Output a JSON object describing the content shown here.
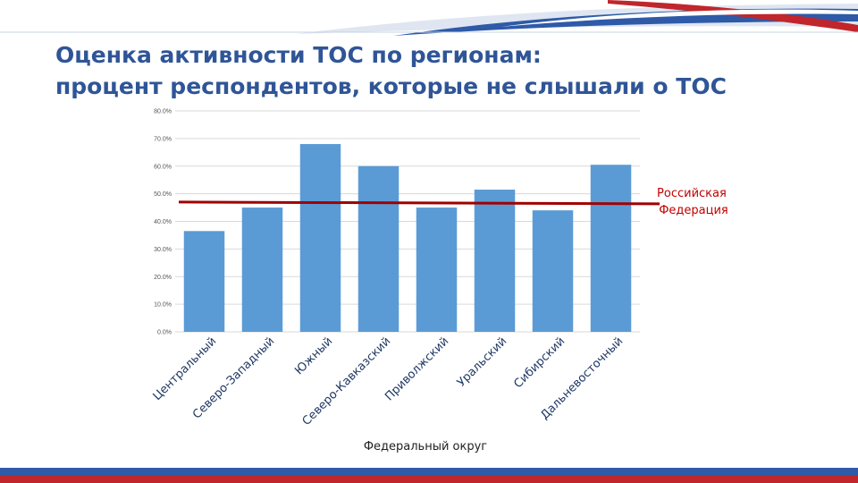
{
  "slide": {
    "title_line1": "Оценка активности ТОС по регионам:",
    "title_line2": "процент респондентов, которые не слышали о ТОС"
  },
  "colors": {
    "title": "#2f5597",
    "bar": "#5b9bd5",
    "reference_line": "#a00000",
    "stripe_blue": "#2e5aa8",
    "stripe_red": "#c0262c"
  },
  "chart_data": {
    "type": "bar",
    "title": "",
    "xlabel": "Федеральный округ",
    "ylabel": "",
    "ylim": [
      0,
      80
    ],
    "yticks": [
      {
        "value": 0,
        "label": "0.0%"
      },
      {
        "value": 10,
        "label": "10.0%"
      },
      {
        "value": 20,
        "label": "20.0%"
      },
      {
        "value": 30,
        "label": "30.0%"
      },
      {
        "value": 40,
        "label": "40.0%"
      },
      {
        "value": 50,
        "label": "50.0%"
      },
      {
        "value": 60,
        "label": "60.0%"
      },
      {
        "value": 70,
        "label": "70.0%"
      },
      {
        "value": 80,
        "label": "80.0%"
      }
    ],
    "grid": true,
    "categories": [
      "Центральный",
      "Северо-Западный",
      "Южный",
      "Северо-Кавказский",
      "Приволжский",
      "Уральский",
      "Сибирский",
      "Дальневосточный"
    ],
    "values": [
      36.5,
      45,
      68,
      60,
      45,
      51.5,
      44,
      60.5
    ],
    "reference": {
      "value": 47,
      "label_lines": [
        "Российская",
        "Федерация"
      ]
    }
  }
}
